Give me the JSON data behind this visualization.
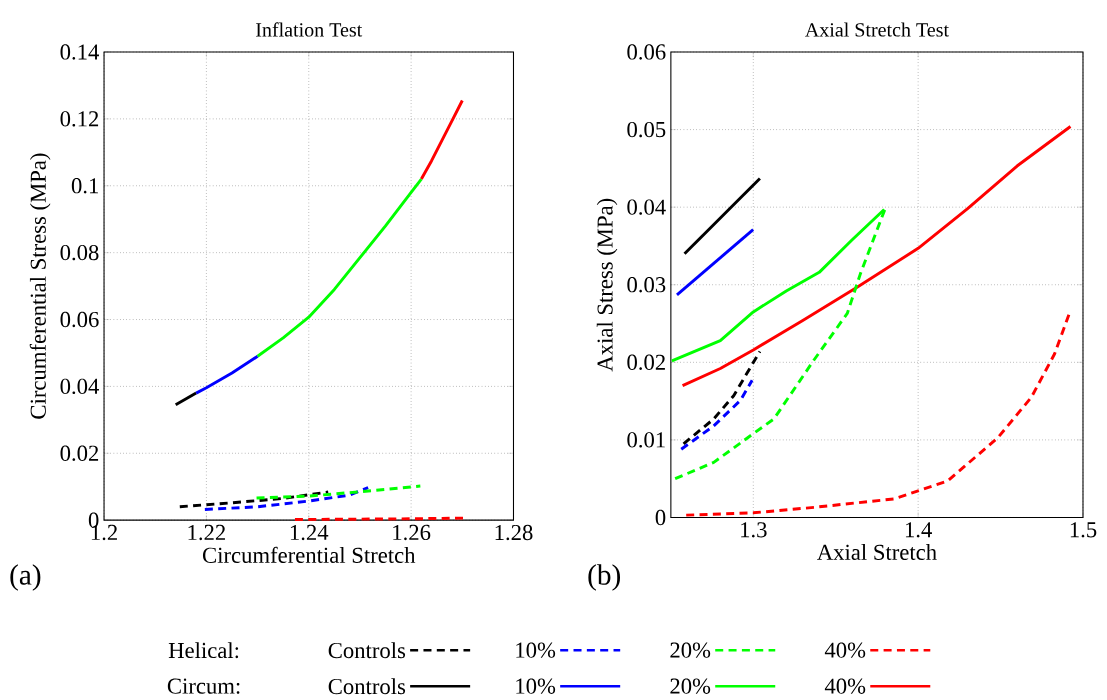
{
  "chart_data": [
    {
      "type": "line",
      "title": "Inflation Test",
      "xlabel": "Circumferential Stretch",
      "ylabel": "Circumferential Stress (MPa)",
      "xlim": [
        1.2,
        1.28
      ],
      "ylim": [
        0,
        0.14
      ],
      "xticks": [
        1.2,
        1.22,
        1.24,
        1.26,
        1.28
      ],
      "yticks": [
        0,
        0.02,
        0.04,
        0.06,
        0.08,
        0.1,
        0.12,
        0.14
      ],
      "grid": true,
      "legend": "bottom",
      "annotations": [
        "(a)",
        "Helical:",
        "Circum:"
      ],
      "series": [
        {
          "name": "Controls",
          "color": "#000000",
          "line_style": "dashed",
          "x": [
            1.2148,
            1.225,
            1.235,
            1.2438
          ],
          "values": [
            0.004,
            0.0052,
            0.0065,
            0.0084
          ]
        },
        {
          "name": "10%",
          "color": "#0000ff",
          "line_style": "dashed",
          "x": [
            1.2197,
            1.23,
            1.24,
            1.248,
            1.2516
          ],
          "values": [
            0.0032,
            0.004,
            0.0057,
            0.0075,
            0.0097
          ]
        },
        {
          "name": "20%",
          "color": "#00ff00",
          "line_style": "dashed",
          "x": [
            1.2298,
            1.24,
            1.25,
            1.2618
          ],
          "values": [
            0.0066,
            0.0072,
            0.0085,
            0.0102
          ]
        },
        {
          "name": "40%",
          "color": "#ff0000",
          "line_style": "dashed",
          "x": [
            1.2373,
            1.25,
            1.26,
            1.2702
          ],
          "values": [
            0.0002,
            0.0003,
            0.0004,
            0.0006
          ]
        },
        {
          "name": "Controls",
          "color": "#000000",
          "line_style": "solid",
          "x": [
            1.214,
            1.218
          ],
          "values": [
            0.0345,
            0.038
          ]
        },
        {
          "name": "10%",
          "color": "#0000ff",
          "line_style": "solid",
          "x": [
            1.218,
            1.22,
            1.225,
            1.23
          ],
          "values": [
            0.038,
            0.0396,
            0.044,
            0.049
          ]
        },
        {
          "name": "40%",
          "color": "#ff0000",
          "line_style": "solid",
          "x": [
            1.262,
            1.264,
            1.266,
            1.268,
            1.27
          ],
          "values": [
            0.102,
            0.1075,
            0.1135,
            0.1195,
            0.1255
          ]
        },
        {
          "name": "20%",
          "color": "#00ff00",
          "line_style": "solid",
          "x": [
            1.23,
            1.235,
            1.24,
            1.245,
            1.25,
            1.255,
            1.26,
            1.262
          ],
          "values": [
            0.049,
            0.0545,
            0.0607,
            0.069,
            0.0785,
            0.088,
            0.098,
            0.102
          ]
        }
      ]
    },
    {
      "type": "line",
      "title": "Axial Stretch Test",
      "xlabel": "Axial Stretch",
      "ylabel": "Axial Stress (MPa)",
      "xlim": [
        1.25,
        1.5
      ],
      "ylim": [
        0,
        0.06
      ],
      "xticks": [
        1.3,
        1.4,
        1.5
      ],
      "yticks": [
        0,
        0.01,
        0.02,
        0.03,
        0.04,
        0.05,
        0.06
      ],
      "grid": true,
      "annotations": [
        "(b)"
      ],
      "series": [
        {
          "color": "#000000",
          "line_style": "solid",
          "x": [
            1.2583,
            1.304
          ],
          "values": [
            0.034,
            0.0437
          ]
        },
        {
          "color": "#0000ff",
          "line_style": "solid",
          "x": [
            1.2537,
            1.2999
          ],
          "values": [
            0.0287,
            0.0371
          ]
        },
        {
          "color": "#00ff00",
          "line_style": "solid",
          "x": [
            1.2506,
            1.28,
            1.3,
            1.32,
            1.34,
            1.36,
            1.3794
          ],
          "values": [
            0.0202,
            0.0228,
            0.0265,
            0.0292,
            0.0316,
            0.0358,
            0.0397
          ]
        },
        {
          "color": "#ff0000",
          "line_style": "solid",
          "x": [
            1.2571,
            1.28,
            1.3,
            1.33,
            1.3632,
            1.4,
            1.43,
            1.46,
            1.4924
          ],
          "values": [
            0.017,
            0.0192,
            0.0216,
            0.0254,
            0.0297,
            0.0347,
            0.0398,
            0.0453,
            0.0504
          ]
        },
        {
          "color": "#000000",
          "line_style": "dashed",
          "x": [
            1.2577,
            1.276,
            1.2881,
            1.304
          ],
          "values": [
            0.0095,
            0.0127,
            0.0157,
            0.0214
          ]
        },
        {
          "color": "#0000ff",
          "line_style": "dashed",
          "x": [
            1.2563,
            1.276,
            1.2922,
            1.2993
          ],
          "values": [
            0.0088,
            0.0118,
            0.0151,
            0.0177
          ]
        },
        {
          "color": "#00ff00",
          "line_style": "dashed",
          "x": [
            1.2526,
            1.276,
            1.3,
            1.3125,
            1.3368,
            1.357,
            1.3651,
            1.3798
          ],
          "values": [
            0.005,
            0.0071,
            0.0108,
            0.0127,
            0.0203,
            0.0263,
            0.0315,
            0.0397
          ]
        },
        {
          "color": "#ff0000",
          "line_style": "dashed",
          "x": [
            1.2593,
            1.3,
            1.3368,
            1.3855,
            1.4179,
            1.4484,
            1.4687,
            1.4828,
            1.4924
          ],
          "values": [
            0.0003,
            0.0006,
            0.0013,
            0.0024,
            0.0047,
            0.0103,
            0.0155,
            0.0211,
            0.0267
          ]
        }
      ]
    }
  ]
}
